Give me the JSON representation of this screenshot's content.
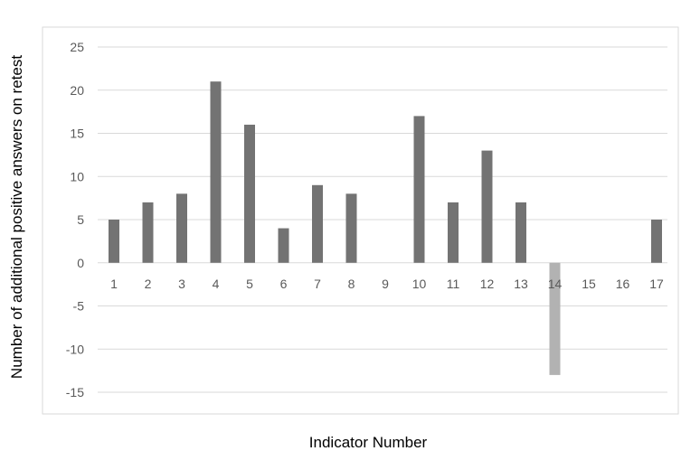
{
  "chart_data": {
    "type": "bar",
    "title": "",
    "xlabel": "Indicator Number",
    "ylabel": "Number of additional positive answers on retest",
    "categories": [
      "1",
      "2",
      "3",
      "4",
      "5",
      "6",
      "7",
      "8",
      "9",
      "10",
      "11",
      "12",
      "13",
      "14",
      "15",
      "16",
      "17"
    ],
    "values": [
      5,
      7,
      8,
      21,
      16,
      4,
      9,
      8,
      0,
      17,
      7,
      13,
      7,
      -13,
      0,
      0,
      5
    ],
    "ylim": [
      -15,
      25
    ],
    "yticks": [
      "25",
      "20",
      "15",
      "10",
      "5",
      "0",
      "-5",
      "-10",
      "-15"
    ],
    "grid": true,
    "legend": "none",
    "colors": {
      "positive_bar": "#737373",
      "negative_bar": "#b2b2b2",
      "gridline": "#d9d9d9",
      "plot_border": "#d9d9d9"
    }
  }
}
